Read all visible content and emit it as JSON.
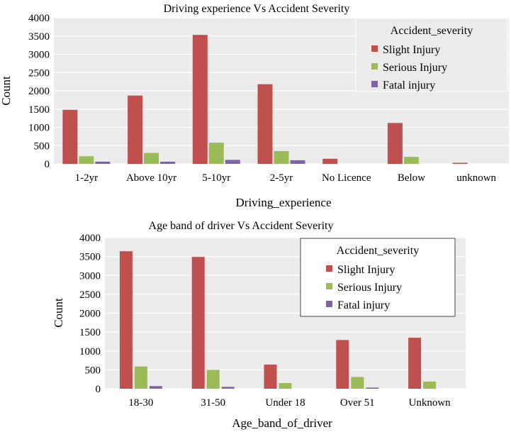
{
  "chart_data": [
    {
      "type": "bar",
      "title": "Driving experience Vs Accident Severity",
      "xlabel": "Driving_experience",
      "ylabel": "Count",
      "ylim": [
        0,
        4000
      ],
      "yticks": [
        "0",
        "500",
        "1000",
        "1500",
        "2000",
        "2500",
        "3000",
        "3500",
        "4000"
      ],
      "grid": true,
      "legend_title": "Accident_severity",
      "legend_position": "top-right",
      "categories": [
        "1-2yr",
        "Above 10yr",
        "5-10yr",
        "2-5yr",
        "No Licence",
        "Below",
        "unknown"
      ],
      "series": [
        {
          "name": "Slight Injury",
          "color": "#c0504d",
          "values": [
            1480,
            1870,
            3530,
            2180,
            140,
            1120,
            30
          ]
        },
        {
          "name": "Serious Injury",
          "color": "#9bbb59",
          "values": [
            210,
            300,
            580,
            350,
            0,
            190,
            0
          ]
        },
        {
          "name": "Fatal injury",
          "color": "#8064a2",
          "values": [
            60,
            60,
            110,
            100,
            0,
            0,
            0
          ]
        }
      ]
    },
    {
      "type": "bar",
      "title": "Age band of driver Vs Accident Severity",
      "xlabel": "Age_band_of_driver",
      "ylabel": "Count",
      "ylim": [
        0,
        4000
      ],
      "yticks": [
        "0",
        "500",
        "1000",
        "1500",
        "2000",
        "2500",
        "3000",
        "3500",
        "4000"
      ],
      "grid": true,
      "legend_title": "Accident_severity",
      "legend_position": "top-right",
      "categories": [
        "18-30",
        "31-50",
        "Under 18",
        "Over 51",
        "Unknown"
      ],
      "series": [
        {
          "name": "Slight Injury",
          "color": "#c0504d",
          "values": [
            3640,
            3490,
            640,
            1290,
            1350
          ]
        },
        {
          "name": "Serious Injury",
          "color": "#9bbb59",
          "values": [
            590,
            500,
            150,
            310,
            190
          ]
        },
        {
          "name": "Fatal injury",
          "color": "#8064a2",
          "values": [
            70,
            50,
            0,
            30,
            0
          ]
        }
      ]
    }
  ]
}
